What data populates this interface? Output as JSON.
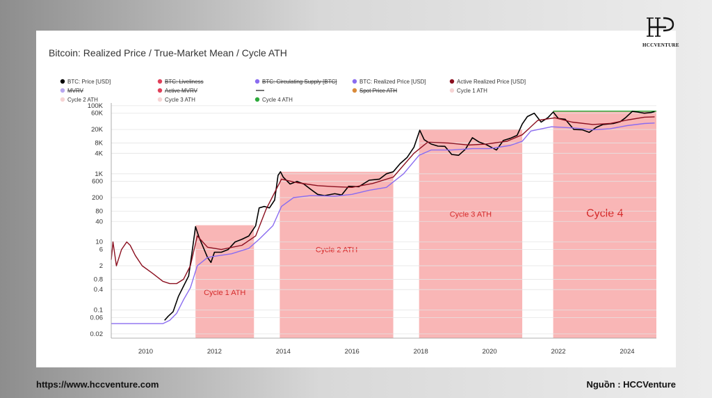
{
  "brand": {
    "logo_text": "HCCVENTURE",
    "footer_left": "https://www.hccventure.com",
    "footer_right": "Nguồn : HCCVenture"
  },
  "chart_data": {
    "type": "line",
    "title": "Bitcoin: Realized Price / True-Market Mean / Cycle ATH",
    "y_scale": "log",
    "ylim": [
      0.015,
      120000
    ],
    "xlim": [
      2009.0,
      2024.85
    ],
    "grid": {
      "horizontal": true,
      "vertical": false
    },
    "yticks": [
      {
        "v": 100000,
        "label": "100K"
      },
      {
        "v": 60000,
        "label": "60K"
      },
      {
        "v": 20000,
        "label": "20K"
      },
      {
        "v": 8000,
        "label": "8K"
      },
      {
        "v": 4000,
        "label": "4K"
      },
      {
        "v": 1000,
        "label": "1K"
      },
      {
        "v": 600,
        "label": "600"
      },
      {
        "v": 200,
        "label": "200"
      },
      {
        "v": 80,
        "label": "80"
      },
      {
        "v": 40,
        "label": "40"
      },
      {
        "v": 10,
        "label": "10"
      },
      {
        "v": 6,
        "label": "6"
      },
      {
        "v": 2,
        "label": "2"
      },
      {
        "v": 0.8,
        "label": "0.8"
      },
      {
        "v": 0.4,
        "label": "0.4"
      },
      {
        "v": 0.1,
        "label": "0.1"
      },
      {
        "v": 0.06,
        "label": "0.06"
      },
      {
        "v": 0.02,
        "label": "0.02"
      }
    ],
    "xticks": [
      2010,
      2012,
      2014,
      2016,
      2018,
      2020,
      2022,
      2024
    ],
    "legend": {
      "placement": "top",
      "items": [
        {
          "label": "BTC: Price [USD]",
          "color": "#000000",
          "struck": false
        },
        {
          "label": "BTC: Liveliness",
          "color": "#e0405a",
          "struck": true
        },
        {
          "label": "BTC: Circulating Supply [BTC]",
          "color": "#8a6cf0",
          "struck": true
        },
        {
          "label": "BTC: Realized Price [USD]",
          "color": "#8a6cf0",
          "struck": false
        },
        {
          "label": "Active Realized Price [USD]",
          "color": "#8b0f1f",
          "struck": false
        },
        {
          "label": "MVRV",
          "color": "#b9a8f0",
          "struck": true
        },
        {
          "label": "Active MVRV",
          "color": "#e0405a",
          "struck": true
        },
        {
          "label": "",
          "color": "#444444",
          "struck": false
        },
        {
          "label": "Spot Price ATH",
          "color": "#d98a3a",
          "struck": true
        },
        {
          "label": "Cycle 1 ATH",
          "color": "#f6d4d4",
          "struck": false
        },
        {
          "label": "Cycle 2 ATH",
          "color": "#f6d4d4",
          "struck": false
        },
        {
          "label": "Cycle 3 ATH",
          "color": "#f6d4d4",
          "struck": false
        },
        {
          "label": "Cycle 4 ATH",
          "color": "#2eaa3c",
          "struck": false
        }
      ]
    },
    "cycle_zones": [
      {
        "label": "Cycle 1 ATH",
        "x0": 2011.45,
        "x1": 2013.15,
        "ath": 31
      },
      {
        "label": "Cycle 2 ATH",
        "x0": 2013.9,
        "x1": 2017.2,
        "ath": 1150
      },
      {
        "label": "Cycle 3 ATH",
        "x0": 2017.95,
        "x1": 2020.95,
        "ath": 19700
      },
      {
        "label": "Cycle 4",
        "x0": 2021.85,
        "x1": 2024.85,
        "ath": 69000
      }
    ],
    "series": [
      {
        "name": "BTC: Price [USD]",
        "color": "#000000",
        "points": [
          [
            2010.55,
            0.05
          ],
          [
            2010.65,
            0.065
          ],
          [
            2010.8,
            0.09
          ],
          [
            2010.95,
            0.25
          ],
          [
            2011.1,
            0.5
          ],
          [
            2011.25,
            1.0
          ],
          [
            2011.35,
            5
          ],
          [
            2011.45,
            28
          ],
          [
            2011.55,
            14
          ],
          [
            2011.65,
            8
          ],
          [
            2011.8,
            3.5
          ],
          [
            2011.9,
            2.5
          ],
          [
            2012.0,
            5
          ],
          [
            2012.2,
            5
          ],
          [
            2012.4,
            6
          ],
          [
            2012.6,
            10
          ],
          [
            2012.8,
            12
          ],
          [
            2013.0,
            15
          ],
          [
            2013.2,
            30
          ],
          [
            2013.3,
            100
          ],
          [
            2013.45,
            110
          ],
          [
            2013.6,
            100
          ],
          [
            2013.75,
            170
          ],
          [
            2013.85,
            900
          ],
          [
            2013.92,
            1150
          ],
          [
            2014.0,
            800
          ],
          [
            2014.2,
            500
          ],
          [
            2014.4,
            600
          ],
          [
            2014.6,
            500
          ],
          [
            2014.8,
            350
          ],
          [
            2015.0,
            250
          ],
          [
            2015.2,
            230
          ],
          [
            2015.5,
            260
          ],
          [
            2015.7,
            240
          ],
          [
            2015.9,
            430
          ],
          [
            2016.2,
            420
          ],
          [
            2016.5,
            650
          ],
          [
            2016.8,
            700
          ],
          [
            2017.0,
            1000
          ],
          [
            2017.2,
            1150
          ],
          [
            2017.4,
            2000
          ],
          [
            2017.6,
            3000
          ],
          [
            2017.8,
            6000
          ],
          [
            2017.97,
            19000
          ],
          [
            2018.1,
            10000
          ],
          [
            2018.3,
            7500
          ],
          [
            2018.5,
            6500
          ],
          [
            2018.7,
            6400
          ],
          [
            2018.9,
            3700
          ],
          [
            2019.1,
            3500
          ],
          [
            2019.3,
            5300
          ],
          [
            2019.5,
            11500
          ],
          [
            2019.7,
            8500
          ],
          [
            2019.9,
            7200
          ],
          [
            2020.2,
            5000
          ],
          [
            2020.4,
            9500
          ],
          [
            2020.6,
            11000
          ],
          [
            2020.8,
            13500
          ],
          [
            2020.95,
            29000
          ],
          [
            2021.1,
            48000
          ],
          [
            2021.3,
            60000
          ],
          [
            2021.5,
            33000
          ],
          [
            2021.7,
            45000
          ],
          [
            2021.85,
            65000
          ],
          [
            2022.0,
            42000
          ],
          [
            2022.2,
            40000
          ],
          [
            2022.45,
            20000
          ],
          [
            2022.7,
            19500
          ],
          [
            2022.9,
            16500
          ],
          [
            2023.1,
            23000
          ],
          [
            2023.3,
            28000
          ],
          [
            2023.6,
            30000
          ],
          [
            2023.8,
            34000
          ],
          [
            2023.95,
            44000
          ],
          [
            2024.15,
            68000
          ],
          [
            2024.3,
            65000
          ],
          [
            2024.5,
            60000
          ],
          [
            2024.7,
            63000
          ],
          [
            2024.8,
            67000
          ]
        ]
      },
      {
        "name": "BTC: Realized Price [USD]",
        "color": "#8a6cf0",
        "points": [
          [
            2009.0,
            0.04
          ],
          [
            2010.5,
            0.04
          ],
          [
            2010.7,
            0.05
          ],
          [
            2010.9,
            0.08
          ],
          [
            2011.1,
            0.2
          ],
          [
            2011.3,
            0.45
          ],
          [
            2011.5,
            2.0
          ],
          [
            2011.8,
            3.5
          ],
          [
            2012.0,
            3.8
          ],
          [
            2012.5,
            4.5
          ],
          [
            2013.0,
            6.5
          ],
          [
            2013.3,
            12
          ],
          [
            2013.7,
            30
          ],
          [
            2013.95,
            110
          ],
          [
            2014.3,
            200
          ],
          [
            2014.8,
            230
          ],
          [
            2015.5,
            220
          ],
          [
            2016.0,
            250
          ],
          [
            2016.5,
            330
          ],
          [
            2017.0,
            400
          ],
          [
            2017.5,
            1000
          ],
          [
            2017.95,
            3500
          ],
          [
            2018.3,
            5000
          ],
          [
            2018.9,
            5000
          ],
          [
            2019.5,
            5500
          ],
          [
            2020.0,
            5500
          ],
          [
            2020.6,
            6800
          ],
          [
            2020.95,
            9000
          ],
          [
            2021.2,
            18000
          ],
          [
            2021.8,
            24000
          ],
          [
            2022.5,
            22000
          ],
          [
            2023.0,
            19500
          ],
          [
            2023.5,
            21000
          ],
          [
            2024.0,
            26000
          ],
          [
            2024.5,
            30000
          ],
          [
            2024.8,
            31000
          ]
        ]
      },
      {
        "name": "Active Realized Price [USD]",
        "color": "#8b0f1f",
        "points": [
          [
            2009.0,
            3
          ],
          [
            2009.05,
            10
          ],
          [
            2009.15,
            2
          ],
          [
            2009.3,
            6
          ],
          [
            2009.45,
            10
          ],
          [
            2009.55,
            8
          ],
          [
            2009.7,
            4
          ],
          [
            2009.9,
            2
          ],
          [
            2010.2,
            1.2
          ],
          [
            2010.5,
            0.7
          ],
          [
            2010.7,
            0.6
          ],
          [
            2010.9,
            0.6
          ],
          [
            2011.1,
            0.8
          ],
          [
            2011.3,
            2
          ],
          [
            2011.5,
            15
          ],
          [
            2011.8,
            7
          ],
          [
            2012.2,
            6
          ],
          [
            2012.8,
            8
          ],
          [
            2013.2,
            15
          ],
          [
            2013.5,
            90
          ],
          [
            2013.95,
            700
          ],
          [
            2014.4,
            550
          ],
          [
            2015.0,
            450
          ],
          [
            2015.5,
            420
          ],
          [
            2016.0,
            400
          ],
          [
            2016.6,
            520
          ],
          [
            2017.2,
            800
          ],
          [
            2017.8,
            4000
          ],
          [
            2018.2,
            8500
          ],
          [
            2018.8,
            8000
          ],
          [
            2019.4,
            7000
          ],
          [
            2019.9,
            7500
          ],
          [
            2020.5,
            9000
          ],
          [
            2020.95,
            14000
          ],
          [
            2021.4,
            37000
          ],
          [
            2021.9,
            44000
          ],
          [
            2022.4,
            33000
          ],
          [
            2023.0,
            28000
          ],
          [
            2023.5,
            30000
          ],
          [
            2024.0,
            38000
          ],
          [
            2024.5,
            46000
          ],
          [
            2024.8,
            47000
          ]
        ]
      }
    ]
  }
}
